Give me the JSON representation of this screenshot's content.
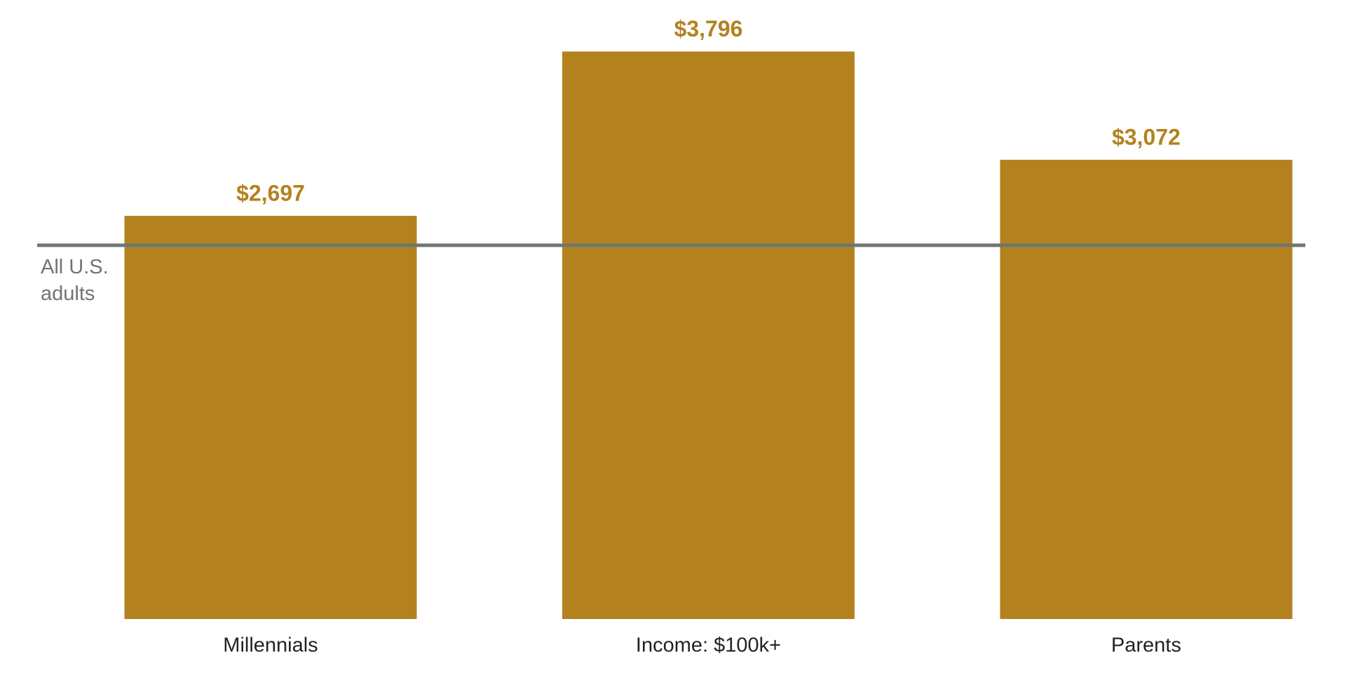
{
  "chart_data": {
    "type": "bar",
    "categories": [
      "Millennials",
      "Income: $100k+",
      "Parents"
    ],
    "values": [
      2697,
      3796,
      3072
    ],
    "value_labels": [
      "$2,697",
      "$3,796",
      "$3,072"
    ],
    "color": "#b3821f",
    "ylim": [
      0,
      4000
    ],
    "reference_line": {
      "label": "All U.S. adults",
      "value": 2500,
      "color": "#6f7672"
    }
  }
}
